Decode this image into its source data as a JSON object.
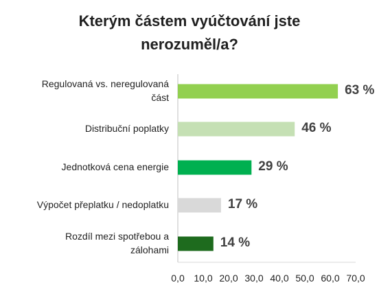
{
  "chart_data": {
    "type": "bar",
    "orientation": "horizontal",
    "title_lines": [
      "Kterým částem vyúčtování jste",
      "nerozuměl/a?"
    ],
    "categories": [
      [
        "Regulovaná vs. neregulovaná",
        "část"
      ],
      [
        "Distribuční poplatky"
      ],
      [
        "Jednotková cena energie"
      ],
      [
        "Výpočet přeplatku / nedoplatku"
      ],
      [
        "Rozdíl mezi spotřebou a",
        "zálohami"
      ]
    ],
    "values": [
      63,
      46,
      29,
      17,
      14
    ],
    "value_labels": [
      "63 %",
      "46 %",
      "29 %",
      "17 %",
      "14 %"
    ],
    "bar_colors": [
      "#92d050",
      "#c5e0b4",
      "#00b050",
      "#d9d9d9",
      "#1e6b1e"
    ],
    "xlim": [
      0,
      70
    ],
    "xticks": [
      0,
      10,
      20,
      30,
      40,
      50,
      60,
      70
    ],
    "xtick_labels": [
      "0,0",
      "10,0",
      "20,0",
      "30,0",
      "40,0",
      "50,0",
      "60,0",
      "70,0"
    ],
    "grid": false,
    "legend": "none"
  }
}
